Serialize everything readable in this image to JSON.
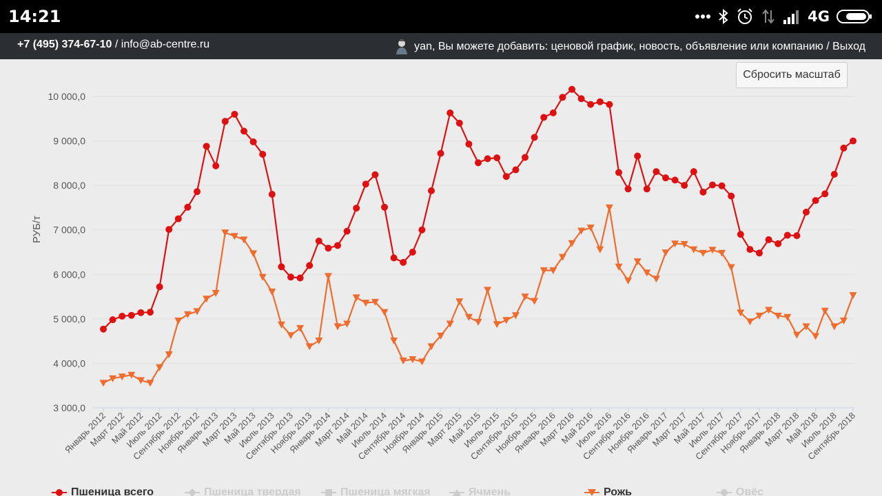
{
  "status_bar": {
    "time": "14:21",
    "network": "4G",
    "icons": [
      "more-dots-icon",
      "bluetooth-icon",
      "alarm-icon",
      "data-arrows-icon",
      "signal-icon",
      "battery-icon"
    ]
  },
  "header": {
    "phone": "+7 (495) 374-67-10",
    "separator": " / ",
    "email": "info@ab-centre.ru",
    "user_message": "yan, Вы можете добавить: ценовой график, новость, объявление или компанию / Выход"
  },
  "reset_zoom_label": "Сбросить масштаб",
  "colors": {
    "wheat": "#dd1111",
    "rye": "#ee6c2e",
    "inactive": "#cccccc",
    "grid": "#dedede",
    "axis_text": "#555555"
  },
  "chart_data": {
    "type": "line",
    "ylabel": "РУБ/т",
    "ylim": [
      3000,
      10000
    ],
    "yticks": [
      "3 000,0",
      "4 000,0",
      "5 000,0",
      "6 000,0",
      "7 000,0",
      "8 000,0",
      "9 000,0",
      "10 000,0"
    ],
    "x_tick_labels": [
      "Январь 2012",
      "Март 2012",
      "Май 2012",
      "Июль 2012",
      "Сентябрь 2012",
      "Ноябрь 2012",
      "Январь 2013",
      "Март 2013",
      "Май 2013",
      "Июль 2013",
      "Сентябрь 2013",
      "Ноябрь 2013",
      "Январь 2014",
      "Март 2014",
      "Май 2014",
      "Июль 2014",
      "Сентябрь 2014",
      "Ноябрь 2014",
      "Январь 2015",
      "Март 2015",
      "Май 2015",
      "Июль 2015",
      "Сентябрь 2015",
      "Ноябрь 2015",
      "Январь 2016",
      "Март 2016",
      "Май 2016",
      "Июль 2016",
      "Сентябрь 2016",
      "Ноябрь 2016",
      "Январь 2017",
      "Март 2017",
      "Май 2017",
      "Июль 2017",
      "Сентябрь 2017",
      "Ноябрь 2017",
      "Январь 2018",
      "Март 2018",
      "Май 2018",
      "Июль 2018",
      "Сентябрь 2018"
    ],
    "series": [
      {
        "name": "Пшеница всего",
        "marker": "circle",
        "values": [
          4770,
          4980,
          5060,
          5080,
          5140,
          5150,
          5720,
          7010,
          7250,
          7510,
          7860,
          8880,
          8440,
          9440,
          9600,
          9220,
          8980,
          8700,
          7800,
          6170,
          5940,
          5920,
          6200,
          6750,
          6590,
          6650,
          6970,
          7490,
          8030,
          8240,
          7510,
          6370,
          6270,
          6500,
          7000,
          7880,
          8720,
          9630,
          9400,
          8930,
          8510,
          8600,
          8620,
          8200,
          8350,
          8630,
          9080,
          9530,
          9630,
          9980,
          10160,
          9950,
          9820,
          9880,
          9820,
          8290,
          7920,
          8660,
          7920,
          8310,
          8170,
          8120,
          8000,
          8310,
          7850,
          8010,
          7990,
          7760,
          6900,
          6560,
          6480,
          6780,
          6690,
          6880,
          6870,
          7400,
          7660,
          7810,
          8250,
          8840,
          9000
        ]
      },
      {
        "name": "Рожь",
        "marker": "triangle-down",
        "values": [
          3560,
          3660,
          3700,
          3740,
          3620,
          3560,
          3910,
          4200,
          4960,
          5100,
          5170,
          5450,
          5580,
          6940,
          6860,
          6780,
          6470,
          5940,
          5610,
          4870,
          4630,
          4790,
          4380,
          4510,
          5960,
          4830,
          4890,
          5480,
          5360,
          5380,
          5150,
          4510,
          4060,
          4090,
          4040,
          4380,
          4620,
          4890,
          5390,
          5040,
          4930,
          5650,
          4880,
          4970,
          5080,
          5500,
          5400,
          6090,
          6090,
          6390,
          6700,
          6980,
          7050,
          6560,
          7500,
          6170,
          5860,
          6290,
          6040,
          5900,
          6490,
          6690,
          6680,
          6560,
          6480,
          6550,
          6480,
          6160,
          5140,
          4940,
          5070,
          5200,
          5070,
          5040,
          4640,
          4830,
          4610,
          5180,
          4830,
          4960,
          5530
        ]
      }
    ]
  },
  "legend": [
    {
      "name": "wheat-total",
      "label": "Пшеница всего",
      "marker": "circle",
      "active": true
    },
    {
      "name": "wheat-hard",
      "label": "Пшеница твердая",
      "marker": "diamond",
      "active": false
    },
    {
      "name": "wheat-soft",
      "label": "Пшеница мягкая",
      "marker": "square",
      "active": false
    },
    {
      "name": "barley",
      "label": "Ячмень",
      "marker": "triangle",
      "active": false
    },
    {
      "name": "rye",
      "label": "Рожь",
      "marker": "triangle-down",
      "active": true
    },
    {
      "name": "oats",
      "label": "Овёс",
      "marker": "circle",
      "active": false
    }
  ]
}
